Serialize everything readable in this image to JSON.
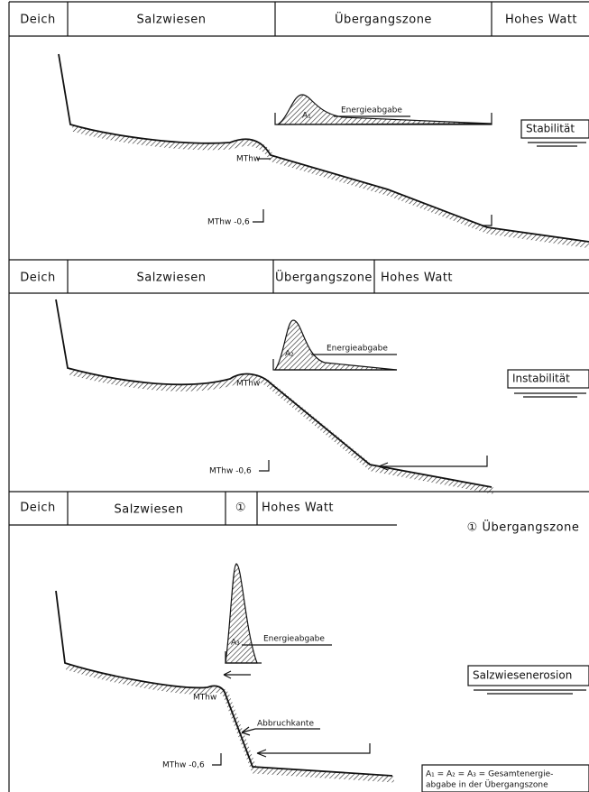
{
  "panels": [
    {
      "zones": [
        "Deich",
        "Salzwiesen",
        "Übergangszone",
        "Hohes Watt"
      ],
      "energy": "Energieabgabe",
      "area": "A₁",
      "mthw": "MThw",
      "mthw_low": "MThw -0,6",
      "state": "Stabilität"
    },
    {
      "zones": [
        "Deich",
        "Salzwiesen",
        "Übergangszone",
        "Hohes Watt"
      ],
      "energy": "Energieabgabe",
      "area": "A₂",
      "mthw": "MThw",
      "mthw_low": "MThw -0,6",
      "state": "Instabilität"
    },
    {
      "zones": [
        "Deich",
        "Salzwiesen",
        "①",
        "Hohes Watt"
      ],
      "legend": "① Übergangszone",
      "energy": "Energieabgabe",
      "area": "A₃",
      "mthw": "MThw",
      "edge": "Abbruchkante",
      "mthw_low": "MThw -0,6",
      "state": "Salzwiesenerosion"
    }
  ],
  "note": [
    "A₁ = A₂ = A₃ = Gesamtenergie-",
    "abgabe in der Übergangszone"
  ]
}
